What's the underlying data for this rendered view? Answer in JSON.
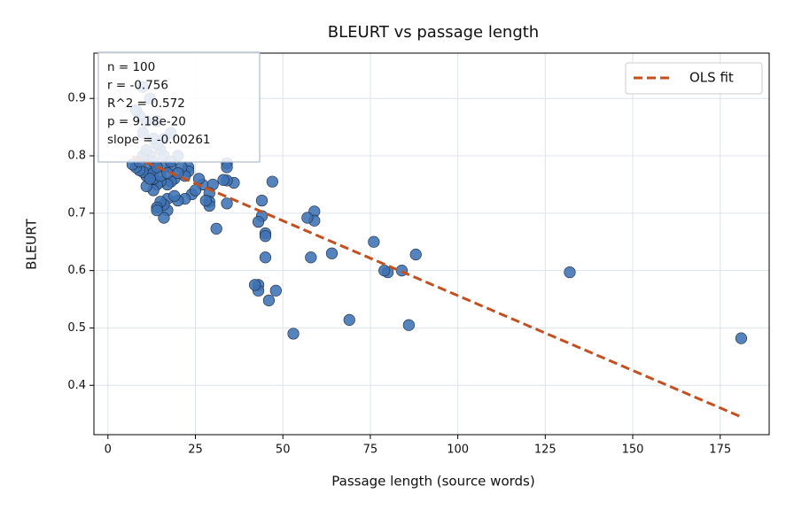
{
  "chart_data": {
    "type": "scatter",
    "title": "BLEURT vs passage length",
    "xlabel": "Passage length (source words)",
    "ylabel": "BLEURT",
    "xlim": [
      -4,
      189
    ],
    "ylim": [
      0.314,
      0.979
    ],
    "xticks": [
      0,
      25,
      50,
      75,
      100,
      125,
      150,
      175
    ],
    "yticks": [
      0.4,
      0.5,
      0.6,
      0.7,
      0.8,
      0.9
    ],
    "grid": true,
    "legend": "upper right",
    "series": [
      {
        "name": "points",
        "color": "#3d72b4",
        "x": [
          181,
          132,
          88,
          86,
          84,
          80,
          79,
          76,
          69,
          64,
          59,
          59,
          58,
          57,
          53,
          48,
          47,
          46,
          45,
          45,
          45,
          44,
          44,
          43,
          43,
          43,
          42,
          36,
          34,
          34,
          34,
          34,
          33,
          31,
          30,
          29,
          29,
          29,
          28,
          27,
          24,
          23,
          23,
          22,
          22,
          20,
          20,
          19,
          18,
          18,
          17,
          17,
          17,
          16,
          16,
          16,
          15,
          15,
          14,
          14,
          14,
          13,
          13,
          12,
          12,
          11,
          11,
          10,
          9,
          8,
          7,
          12,
          13,
          15,
          16,
          14,
          10,
          11,
          9,
          8,
          12,
          10,
          14,
          18,
          13,
          15,
          19,
          25,
          21,
          17,
          14,
          12,
          9,
          10,
          11,
          13,
          16,
          18,
          20,
          26
        ],
        "y": [
          0.482,
          0.597,
          0.628,
          0.505,
          0.6,
          0.597,
          0.6,
          0.65,
          0.514,
          0.63,
          0.703,
          0.687,
          0.623,
          0.692,
          0.49,
          0.565,
          0.755,
          0.548,
          0.665,
          0.66,
          0.623,
          0.722,
          0.695,
          0.685,
          0.575,
          0.565,
          0.575,
          0.753,
          0.787,
          0.78,
          0.757,
          0.717,
          0.758,
          0.673,
          0.75,
          0.735,
          0.72,
          0.713,
          0.722,
          0.75,
          0.733,
          0.78,
          0.773,
          0.725,
          0.765,
          0.722,
          0.8,
          0.76,
          0.78,
          0.755,
          0.725,
          0.705,
          0.75,
          0.692,
          0.715,
          0.78,
          0.72,
          0.755,
          0.71,
          0.705,
          0.75,
          0.74,
          0.76,
          0.77,
          0.78,
          0.747,
          0.765,
          0.772,
          0.775,
          0.78,
          0.785,
          0.8,
          0.79,
          0.81,
          0.83,
          0.82,
          0.84,
          0.86,
          0.87,
          0.88,
          0.9,
          0.92,
          0.86,
          0.84,
          0.77,
          0.765,
          0.73,
          0.74,
          0.78,
          0.77,
          0.78,
          0.76,
          0.79,
          0.8,
          0.81,
          0.83,
          0.8,
          0.79,
          0.77,
          0.76
        ]
      }
    ],
    "fit": {
      "name": "OLS fit",
      "color": "#c4501f",
      "x": [
        7,
        181
      ],
      "y": [
        0.799,
        0.345
      ]
    },
    "annotation": [
      "n = 100",
      "r = -0.756",
      "R^2 = 0.572",
      "p = 9.18e-20",
      "slope = -0.00261"
    ]
  }
}
